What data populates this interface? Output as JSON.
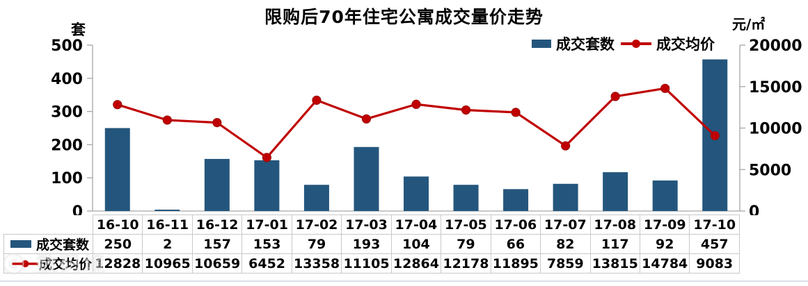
{
  "watermark": "ⓒ 数码境",
  "chart_data": {
    "type": "bar+line",
    "title": "限购后70年住宅公寓成交量价走势",
    "categories": [
      "16-10",
      "16-11",
      "16-12",
      "17-01",
      "17-02",
      "17-03",
      "17-04",
      "17-05",
      "17-06",
      "17-07",
      "17-08",
      "17-09",
      "17-10"
    ],
    "series": [
      {
        "name": "成交套数",
        "type": "bar",
        "axis": "left",
        "color": "#24567D",
        "values": [
          250,
          2,
          157,
          153,
          79,
          193,
          104,
          79,
          66,
          82,
          117,
          92,
          457
        ]
      },
      {
        "name": "成交均价",
        "type": "line",
        "axis": "right",
        "color": "#C00000",
        "marker_color": "#C00000",
        "values": [
          12828,
          10965,
          10659,
          6452,
          13358,
          11105,
          12864,
          12178,
          11895,
          7859,
          13815,
          14784,
          9083
        ]
      }
    ],
    "left_axis": {
      "label": "套",
      "min": 0,
      "max": 500,
      "step": 100
    },
    "right_axis": {
      "label": "元/㎡",
      "min": 0,
      "max": 20000,
      "step": 5000
    },
    "legend_position": "top-right",
    "grid": false,
    "table_below": true
  },
  "colors": {
    "axis": "#a6a6a6",
    "table_border": "#c8c8c8",
    "text": "#000000"
  }
}
